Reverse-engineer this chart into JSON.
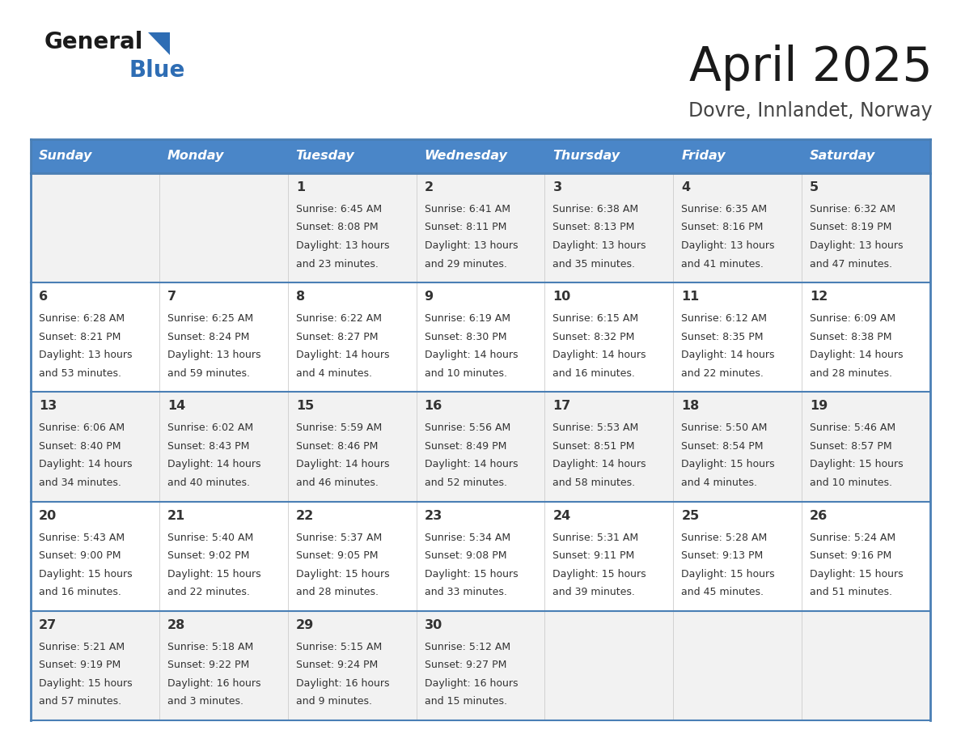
{
  "title": "April 2025",
  "subtitle": "Dovre, Innlandet, Norway",
  "header_color": "#4a86c8",
  "header_text_color": "#ffffff",
  "border_color": "#4a7fb5",
  "cell_bg_even": "#f2f2f2",
  "cell_bg_odd": "#ffffff",
  "text_color": "#333333",
  "logo_text_color": "#1a1a1a",
  "logo_blue_color": "#2e6db4",
  "days_of_week": [
    "Sunday",
    "Monday",
    "Tuesday",
    "Wednesday",
    "Thursday",
    "Friday",
    "Saturday"
  ],
  "calendar": [
    [
      {
        "day": "",
        "sunrise": "",
        "sunset": "",
        "daylight_line1": "",
        "daylight_line2": ""
      },
      {
        "day": "",
        "sunrise": "",
        "sunset": "",
        "daylight_line1": "",
        "daylight_line2": ""
      },
      {
        "day": "1",
        "sunrise": "Sunrise: 6:45 AM",
        "sunset": "Sunset: 8:08 PM",
        "daylight_line1": "Daylight: 13 hours",
        "daylight_line2": "and 23 minutes."
      },
      {
        "day": "2",
        "sunrise": "Sunrise: 6:41 AM",
        "sunset": "Sunset: 8:11 PM",
        "daylight_line1": "Daylight: 13 hours",
        "daylight_line2": "and 29 minutes."
      },
      {
        "day": "3",
        "sunrise": "Sunrise: 6:38 AM",
        "sunset": "Sunset: 8:13 PM",
        "daylight_line1": "Daylight: 13 hours",
        "daylight_line2": "and 35 minutes."
      },
      {
        "day": "4",
        "sunrise": "Sunrise: 6:35 AM",
        "sunset": "Sunset: 8:16 PM",
        "daylight_line1": "Daylight: 13 hours",
        "daylight_line2": "and 41 minutes."
      },
      {
        "day": "5",
        "sunrise": "Sunrise: 6:32 AM",
        "sunset": "Sunset: 8:19 PM",
        "daylight_line1": "Daylight: 13 hours",
        "daylight_line2": "and 47 minutes."
      }
    ],
    [
      {
        "day": "6",
        "sunrise": "Sunrise: 6:28 AM",
        "sunset": "Sunset: 8:21 PM",
        "daylight_line1": "Daylight: 13 hours",
        "daylight_line2": "and 53 minutes."
      },
      {
        "day": "7",
        "sunrise": "Sunrise: 6:25 AM",
        "sunset": "Sunset: 8:24 PM",
        "daylight_line1": "Daylight: 13 hours",
        "daylight_line2": "and 59 minutes."
      },
      {
        "day": "8",
        "sunrise": "Sunrise: 6:22 AM",
        "sunset": "Sunset: 8:27 PM",
        "daylight_line1": "Daylight: 14 hours",
        "daylight_line2": "and 4 minutes."
      },
      {
        "day": "9",
        "sunrise": "Sunrise: 6:19 AM",
        "sunset": "Sunset: 8:30 PM",
        "daylight_line1": "Daylight: 14 hours",
        "daylight_line2": "and 10 minutes."
      },
      {
        "day": "10",
        "sunrise": "Sunrise: 6:15 AM",
        "sunset": "Sunset: 8:32 PM",
        "daylight_line1": "Daylight: 14 hours",
        "daylight_line2": "and 16 minutes."
      },
      {
        "day": "11",
        "sunrise": "Sunrise: 6:12 AM",
        "sunset": "Sunset: 8:35 PM",
        "daylight_line1": "Daylight: 14 hours",
        "daylight_line2": "and 22 minutes."
      },
      {
        "day": "12",
        "sunrise": "Sunrise: 6:09 AM",
        "sunset": "Sunset: 8:38 PM",
        "daylight_line1": "Daylight: 14 hours",
        "daylight_line2": "and 28 minutes."
      }
    ],
    [
      {
        "day": "13",
        "sunrise": "Sunrise: 6:06 AM",
        "sunset": "Sunset: 8:40 PM",
        "daylight_line1": "Daylight: 14 hours",
        "daylight_line2": "and 34 minutes."
      },
      {
        "day": "14",
        "sunrise": "Sunrise: 6:02 AM",
        "sunset": "Sunset: 8:43 PM",
        "daylight_line1": "Daylight: 14 hours",
        "daylight_line2": "and 40 minutes."
      },
      {
        "day": "15",
        "sunrise": "Sunrise: 5:59 AM",
        "sunset": "Sunset: 8:46 PM",
        "daylight_line1": "Daylight: 14 hours",
        "daylight_line2": "and 46 minutes."
      },
      {
        "day": "16",
        "sunrise": "Sunrise: 5:56 AM",
        "sunset": "Sunset: 8:49 PM",
        "daylight_line1": "Daylight: 14 hours",
        "daylight_line2": "and 52 minutes."
      },
      {
        "day": "17",
        "sunrise": "Sunrise: 5:53 AM",
        "sunset": "Sunset: 8:51 PM",
        "daylight_line1": "Daylight: 14 hours",
        "daylight_line2": "and 58 minutes."
      },
      {
        "day": "18",
        "sunrise": "Sunrise: 5:50 AM",
        "sunset": "Sunset: 8:54 PM",
        "daylight_line1": "Daylight: 15 hours",
        "daylight_line2": "and 4 minutes."
      },
      {
        "day": "19",
        "sunrise": "Sunrise: 5:46 AM",
        "sunset": "Sunset: 8:57 PM",
        "daylight_line1": "Daylight: 15 hours",
        "daylight_line2": "and 10 minutes."
      }
    ],
    [
      {
        "day": "20",
        "sunrise": "Sunrise: 5:43 AM",
        "sunset": "Sunset: 9:00 PM",
        "daylight_line1": "Daylight: 15 hours",
        "daylight_line2": "and 16 minutes."
      },
      {
        "day": "21",
        "sunrise": "Sunrise: 5:40 AM",
        "sunset": "Sunset: 9:02 PM",
        "daylight_line1": "Daylight: 15 hours",
        "daylight_line2": "and 22 minutes."
      },
      {
        "day": "22",
        "sunrise": "Sunrise: 5:37 AM",
        "sunset": "Sunset: 9:05 PM",
        "daylight_line1": "Daylight: 15 hours",
        "daylight_line2": "and 28 minutes."
      },
      {
        "day": "23",
        "sunrise": "Sunrise: 5:34 AM",
        "sunset": "Sunset: 9:08 PM",
        "daylight_line1": "Daylight: 15 hours",
        "daylight_line2": "and 33 minutes."
      },
      {
        "day": "24",
        "sunrise": "Sunrise: 5:31 AM",
        "sunset": "Sunset: 9:11 PM",
        "daylight_line1": "Daylight: 15 hours",
        "daylight_line2": "and 39 minutes."
      },
      {
        "day": "25",
        "sunrise": "Sunrise: 5:28 AM",
        "sunset": "Sunset: 9:13 PM",
        "daylight_line1": "Daylight: 15 hours",
        "daylight_line2": "and 45 minutes."
      },
      {
        "day": "26",
        "sunrise": "Sunrise: 5:24 AM",
        "sunset": "Sunset: 9:16 PM",
        "daylight_line1": "Daylight: 15 hours",
        "daylight_line2": "and 51 minutes."
      }
    ],
    [
      {
        "day": "27",
        "sunrise": "Sunrise: 5:21 AM",
        "sunset": "Sunset: 9:19 PM",
        "daylight_line1": "Daylight: 15 hours",
        "daylight_line2": "and 57 minutes."
      },
      {
        "day": "28",
        "sunrise": "Sunrise: 5:18 AM",
        "sunset": "Sunset: 9:22 PM",
        "daylight_line1": "Daylight: 16 hours",
        "daylight_line2": "and 3 minutes."
      },
      {
        "day": "29",
        "sunrise": "Sunrise: 5:15 AM",
        "sunset": "Sunset: 9:24 PM",
        "daylight_line1": "Daylight: 16 hours",
        "daylight_line2": "and 9 minutes."
      },
      {
        "day": "30",
        "sunrise": "Sunrise: 5:12 AM",
        "sunset": "Sunset: 9:27 PM",
        "daylight_line1": "Daylight: 16 hours",
        "daylight_line2": "and 15 minutes."
      },
      {
        "day": "",
        "sunrise": "",
        "sunset": "",
        "daylight_line1": "",
        "daylight_line2": ""
      },
      {
        "day": "",
        "sunrise": "",
        "sunset": "",
        "daylight_line1": "",
        "daylight_line2": ""
      },
      {
        "day": "",
        "sunrise": "",
        "sunset": "",
        "daylight_line1": "",
        "daylight_line2": ""
      }
    ]
  ]
}
